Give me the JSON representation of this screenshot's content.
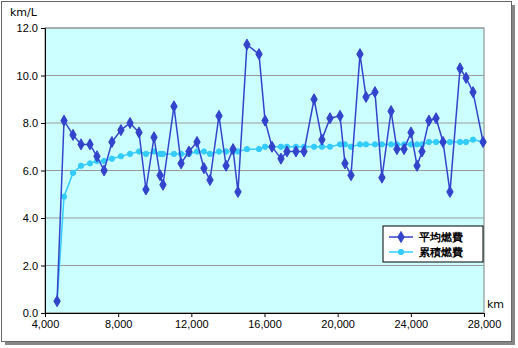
{
  "chart_data": {
    "type": "line",
    "xlabel": "km",
    "ylabel": "km/L",
    "x": [
      4660,
      5040,
      5530,
      5970,
      6460,
      6840,
      7230,
      7660,
      8150,
      8650,
      9140,
      9520,
      9960,
      10290,
      10450,
      11050,
      11440,
      11870,
      12310,
      12690,
      13020,
      13510,
      13900,
      14280,
      14550,
      15040,
      15700,
      16030,
      16410,
      16900,
      17230,
      17720,
      18160,
      18710,
      19140,
      19580,
      20130,
      20400,
      20730,
      21220,
      21550,
      22040,
      22420,
      22920,
      23240,
      23630,
      24010,
      24340,
      24610,
      24990,
      25380,
      25760,
      26140,
      26690,
      27020,
      27400,
      27950
    ],
    "series": [
      {
        "name": "平均燃費",
        "color": "#3344cc",
        "marker": "diamond",
        "values": [
          0.5,
          8.1,
          7.5,
          7.1,
          7.1,
          6.6,
          6.0,
          7.2,
          7.7,
          8.0,
          7.6,
          5.2,
          7.4,
          5.8,
          5.4,
          8.7,
          6.3,
          6.8,
          7.2,
          6.1,
          5.6,
          8.3,
          6.2,
          6.9,
          5.1,
          11.3,
          10.9,
          8.1,
          7.0,
          6.5,
          6.8,
          6.8,
          6.8,
          9.0,
          7.3,
          8.2,
          8.3,
          6.3,
          5.8,
          10.9,
          9.1,
          9.3,
          5.7,
          8.5,
          6.9,
          6.9,
          7.6,
          6.2,
          6.8,
          8.1,
          8.2,
          7.2,
          5.1,
          10.3,
          9.9,
          9.3,
          7.2
        ]
      },
      {
        "name": "累積燃費",
        "color": "#33ccff",
        "marker": "circle",
        "values": [
          0.5,
          4.9,
          5.9,
          6.2,
          6.3,
          6.4,
          6.4,
          6.5,
          6.6,
          6.7,
          6.8,
          6.7,
          6.8,
          6.7,
          6.7,
          6.7,
          6.7,
          6.7,
          6.8,
          6.8,
          6.7,
          6.8,
          6.8,
          6.8,
          6.8,
          6.9,
          6.9,
          7.0,
          7.0,
          7.0,
          7.0,
          7.0,
          7.0,
          7.0,
          7.0,
          7.0,
          7.1,
          7.1,
          7.0,
          7.1,
          7.1,
          7.1,
          7.1,
          7.1,
          7.1,
          7.1,
          7.1,
          7.1,
          7.1,
          7.2,
          7.2,
          7.2,
          7.2,
          7.2,
          7.2,
          7.3,
          7.2
        ]
      }
    ],
    "xlim": [
      4000,
      28000
    ],
    "ylim": [
      0,
      12
    ],
    "xticks": [
      {
        "value": 4000,
        "label": "4,000"
      },
      {
        "value": 8000,
        "label": "8,000"
      },
      {
        "value": 12000,
        "label": "12,000"
      },
      {
        "value": 16000,
        "label": "16,000"
      },
      {
        "value": 20000,
        "label": "20,000"
      },
      {
        "value": 24000,
        "label": "24,000"
      },
      {
        "value": 28000,
        "label": "28,000"
      }
    ],
    "yticks": [
      {
        "value": 0,
        "label": "0.0"
      },
      {
        "value": 2,
        "label": "2.0"
      },
      {
        "value": 4,
        "label": "4.0"
      },
      {
        "value": 6,
        "label": "6.0"
      },
      {
        "value": 8,
        "label": "8.0"
      },
      {
        "value": 10,
        "label": "10.0"
      },
      {
        "value": 12,
        "label": "12.0"
      }
    ],
    "grid": true,
    "legend": "lower right"
  }
}
